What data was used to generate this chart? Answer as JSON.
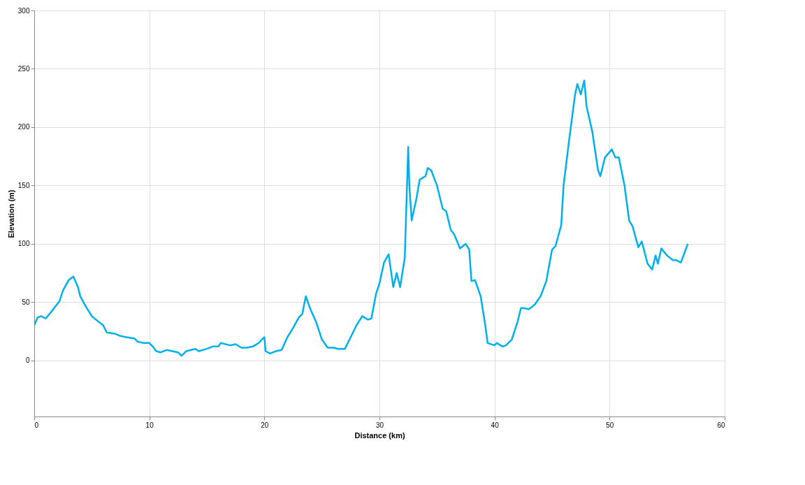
{
  "chart_data": {
    "type": "line",
    "xlabel": "Distance (km)",
    "ylabel": "Elevation (m)",
    "xlim": [
      0,
      60
    ],
    "xticks": [
      0,
      10,
      20,
      30,
      40,
      50,
      60
    ],
    "ylim": [
      -48,
      300
    ],
    "yticks": [
      0,
      50,
      100,
      150,
      200,
      250,
      300
    ],
    "grid": true,
    "line_style": "solid",
    "marker": "none",
    "series": [
      {
        "color": "#00b0ec",
        "x": [
          0,
          0.3,
          0.6,
          1,
          1.5,
          2.2,
          2.5,
          3,
          3.4,
          3.8,
          4,
          4.5,
          5,
          5.5,
          6,
          6.3,
          7,
          7.5,
          8,
          8.7,
          9,
          9.5,
          10,
          10.3,
          10.6,
          11,
          11.5,
          12,
          12.5,
          12.8,
          13.2,
          14,
          14.3,
          15,
          15.5,
          16,
          16.2,
          17,
          17.5,
          18,
          18.5,
          19,
          19.5,
          20,
          20.1,
          20.5,
          21,
          21.5,
          22,
          22.5,
          23,
          23.3,
          23.6,
          24,
          24.5,
          25,
          25.5,
          26,
          26.4,
          27,
          27.5,
          28,
          28.5,
          29,
          29.3,
          29.7,
          30,
          30.4,
          30.8,
          31.2,
          31.5,
          31.8,
          32.2,
          32.5,
          32.6,
          32.8,
          33.2,
          33.5,
          34,
          34.2,
          34.5,
          35,
          35.5,
          35.8,
          36.2,
          36.5,
          37,
          37.5,
          37.8,
          38,
          38.3,
          38.8,
          39.2,
          39.4,
          40,
          40.2,
          40.7,
          41,
          41.5,
          42,
          42.3,
          42.5,
          43,
          43.5,
          44,
          44.5,
          45,
          45.3,
          45.8,
          46,
          46.5,
          47,
          47.2,
          47.5,
          47.8,
          48,
          48.5,
          49,
          49.2,
          49.6,
          50.2,
          50.5,
          50.8,
          51.3,
          51.7,
          52,
          52.5,
          52.8,
          53.3,
          53.7,
          54,
          54.2,
          54.5,
          55,
          55.5,
          55.8,
          56.2,
          56.5,
          56.8
        ],
        "values": [
          30,
          37,
          38,
          36,
          42,
          51,
          60,
          69,
          72,
          63,
          55,
          46,
          38,
          34,
          30,
          24,
          23,
          21,
          20,
          19,
          16,
          15,
          15,
          12,
          8,
          7,
          9,
          8,
          7,
          4,
          8,
          10,
          8,
          10,
          12,
          12,
          15,
          13,
          14,
          11,
          11,
          12,
          15,
          20,
          8,
          6,
          8,
          9,
          20,
          28,
          37,
          40,
          55,
          44,
          33,
          18,
          11,
          11,
          10,
          10,
          20,
          30,
          38,
          35,
          36,
          57,
          66,
          84,
          91,
          63,
          75,
          63,
          88,
          183,
          150,
          120,
          138,
          155,
          158,
          165,
          163,
          150,
          130,
          128,
          112,
          108,
          96,
          100,
          95,
          68,
          69,
          55,
          30,
          15,
          13,
          15,
          12,
          13,
          18,
          33,
          45,
          45,
          44,
          48,
          55,
          68,
          95,
          98,
          116,
          150,
          190,
          228,
          237,
          228,
          240,
          218,
          196,
          163,
          158,
          174,
          181,
          174,
          174,
          150,
          120,
          115,
          97,
          102,
          83,
          78,
          90,
          83,
          96,
          90,
          86,
          86,
          84,
          92,
          100
        ]
      }
    ]
  }
}
